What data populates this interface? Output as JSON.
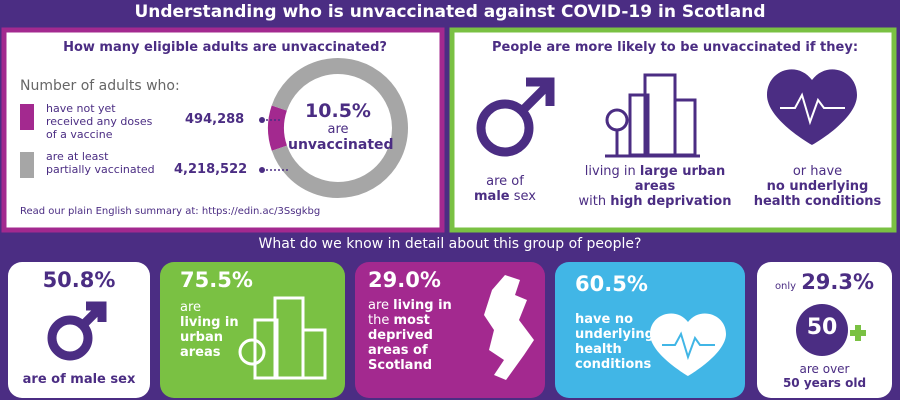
{
  "title": "Understanding who is unvaccinated against COVID-19 in Scotland",
  "left_panel": {
    "heading": "How many eligible adults are unvaccinated?",
    "legend_title": "Number of adults who:",
    "donut": {
      "labels": [
        "have not yet received any doses of a vaccine",
        "are at least partially vaccinated"
      ],
      "values": [
        494288,
        4218522
      ],
      "value_labels": [
        "494,288",
        "4,218,522"
      ],
      "colors": [
        "#a3298f",
        "#a6a6a6"
      ]
    },
    "center": [
      "10.5%",
      "are",
      "unvaccinated"
    ],
    "footnote": "Read our plain English summary at: https://edin.ac/3Ssgkbg"
  },
  "right_panel": {
    "heading": "People are more likely to be unvaccinated if they:",
    "items": [
      [
        "are of",
        "male",
        " sex"
      ],
      [
        "living in ",
        "large urban areas",
        "with ",
        "high deprivation"
      ],
      [
        "or have",
        "no underlying health conditions"
      ]
    ]
  },
  "subheading": "What do we know in detail about this group of people?",
  "cards": [
    {
      "stat": "50.8%",
      "text": [
        "are of male sex"
      ]
    },
    {
      "stat": "75.5%",
      "text": [
        "are",
        "living in urban areas"
      ]
    },
    {
      "stat": "29.0%",
      "text": [
        "are ",
        "living in",
        "the ",
        "most deprived areas of Scotland"
      ]
    },
    {
      "stat": "60.5%",
      "text": [
        "have no underlying health conditions"
      ]
    },
    {
      "prefix": "only",
      "stat": "29.3%",
      "badge": "50",
      "text": [
        "are over",
        "50 years old"
      ]
    }
  ]
}
